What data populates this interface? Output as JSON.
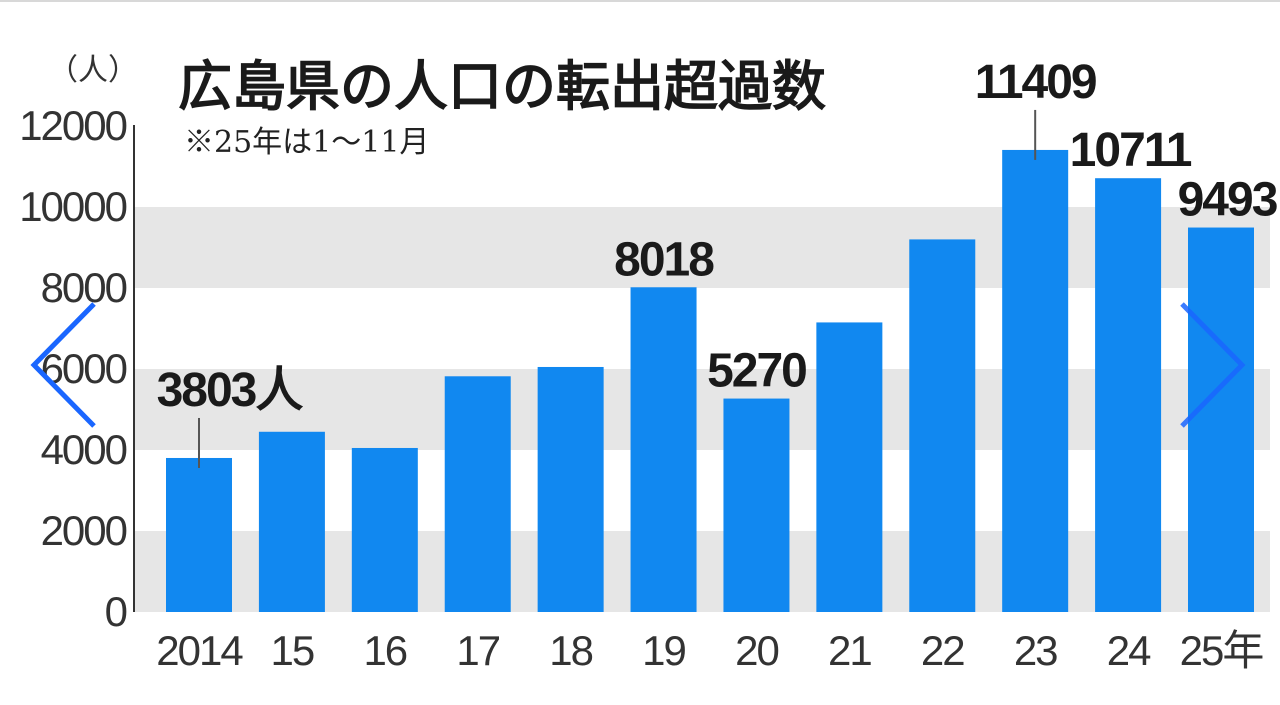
{
  "chart_data": {
    "type": "bar",
    "title": "広島県の人口の転出超過数",
    "subtitle": "※25年は1〜11月",
    "unit_label": "（人）",
    "categories": [
      "2014",
      "15",
      "16",
      "17",
      "18",
      "19",
      "20",
      "21",
      "22",
      "23",
      "24",
      "25年"
    ],
    "values": [
      3803,
      4450,
      4050,
      5820,
      6050,
      8018,
      5270,
      7150,
      9200,
      11409,
      10711,
      9493
    ],
    "data_labels": [
      {
        "index": 0,
        "text": "3803人"
      },
      {
        "index": 5,
        "text": "8018"
      },
      {
        "index": 6,
        "text": "5270"
      },
      {
        "index": 9,
        "text": "11409"
      },
      {
        "index": 10,
        "text": "10711"
      },
      {
        "index": 11,
        "text": "9493"
      }
    ],
    "yticks": [
      "0",
      "2000",
      "4000",
      "6000",
      "8000",
      "10000",
      "12000"
    ],
    "ylim": [
      0,
      12000
    ],
    "grid": "alternating horizontal bands",
    "legend": "none",
    "bar_color": "#1188f0",
    "band_color": "#e6e6e6"
  },
  "navigation": {
    "prev_icon": "chevron-left-icon",
    "next_icon": "chevron-right-icon",
    "icon_color": "#1a66ff"
  }
}
